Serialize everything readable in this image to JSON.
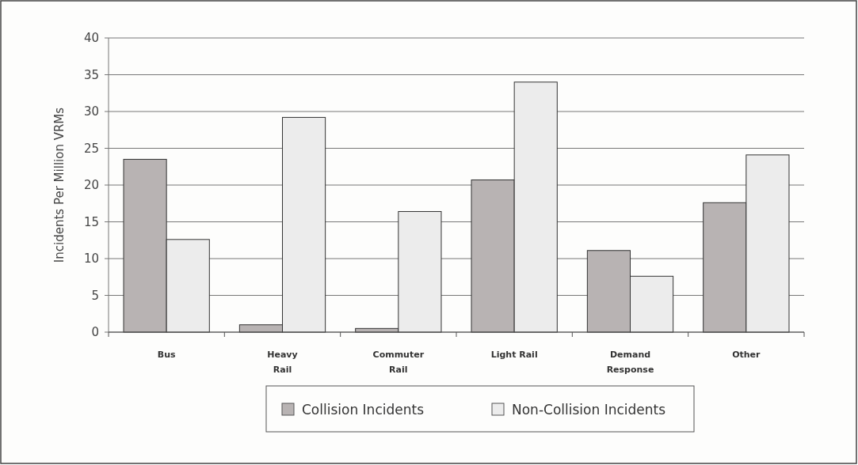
{
  "chart_data": {
    "type": "bar",
    "ylabel": "Incidents Per Million VRMs",
    "categories": [
      "Bus",
      "Heavy\nRail",
      "Commuter\nRail",
      "Light Rail",
      "Demand\nResponse",
      "Other"
    ],
    "series": [
      {
        "name": "Collision Incidents",
        "color": "#b8b3b3",
        "values": [
          23.5,
          1.0,
          0.5,
          20.7,
          11.1,
          17.6
        ]
      },
      {
        "name": "Non-Collision Incidents",
        "color": "#ececec",
        "values": [
          12.6,
          29.2,
          16.4,
          34.0,
          7.6,
          24.1
        ]
      }
    ],
    "ylim": [
      0,
      40
    ],
    "yticks": [
      0,
      5,
      10,
      15,
      20,
      25,
      30,
      35,
      40
    ],
    "grid": "y",
    "legend": "bottom"
  }
}
